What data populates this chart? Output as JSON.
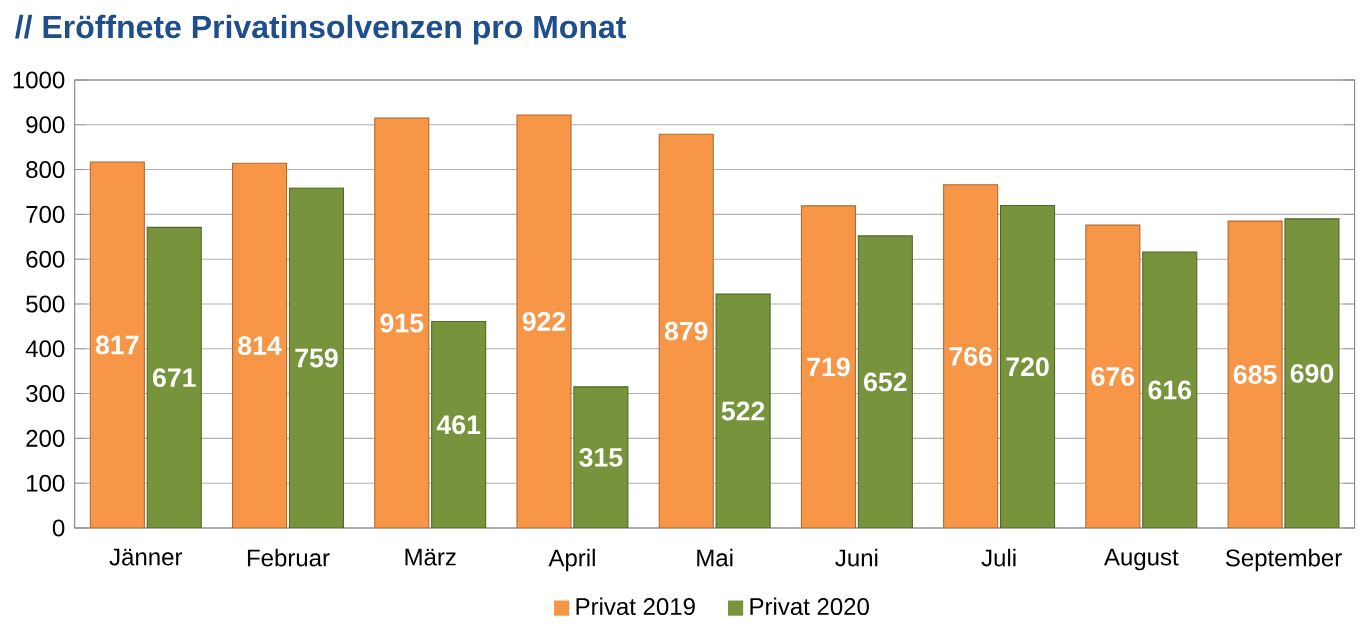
{
  "chart_data": {
    "type": "bar",
    "title": "// Eröffnete Privatinsolvenzen pro Monat",
    "categories": [
      "Jänner",
      "Februar",
      "März",
      "April",
      "Mai",
      "Juni",
      "Juli",
      "August",
      "September"
    ],
    "series": [
      {
        "name": "Privat 2019",
        "color": "#f79646",
        "values": [
          817,
          814,
          915,
          922,
          879,
          719,
          766,
          676,
          685
        ]
      },
      {
        "name": "Privat 2020",
        "color": "#77933c",
        "values": [
          671,
          759,
          461,
          315,
          522,
          652,
          720,
          616,
          690
        ]
      }
    ],
    "ylim": [
      0,
      1000
    ],
    "yticks": [
      0,
      100,
      200,
      300,
      400,
      500,
      600,
      700,
      800,
      900,
      1000
    ],
    "grid": "y",
    "legend": "bottom",
    "data_labels": true
  }
}
